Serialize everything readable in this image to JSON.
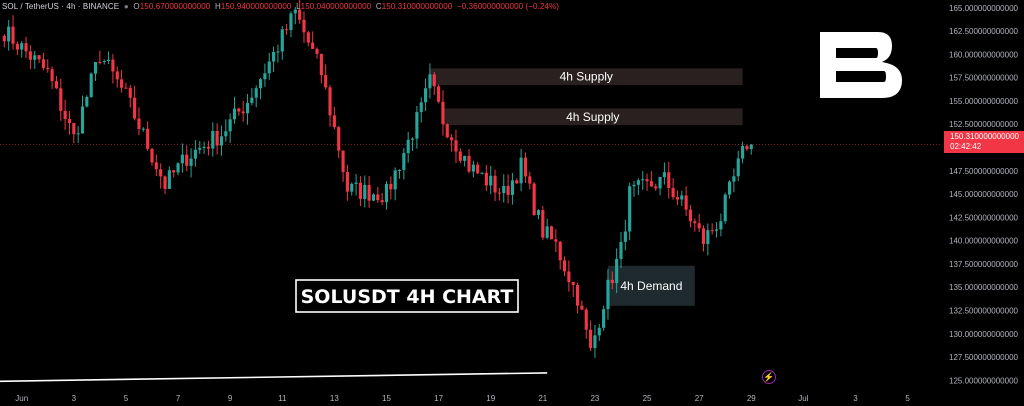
{
  "header": {
    "symbol": "SOL / TetherUS · 4h · BINANCE",
    "o_label": "O",
    "o_value": "150.670000000000",
    "h_label": "H",
    "h_value": "150.940000000000",
    "l_label": "L",
    "l_value": "150.040000000000",
    "c_label": "C",
    "c_value": "150.310000000000",
    "change": "−0.360000000000 (−0.24%)"
  },
  "price_tag": {
    "price": "150.310000000000",
    "countdown": "02:42:42"
  },
  "brand_mark": "B",
  "chart_data": {
    "type": "candlestick",
    "title": "SOLUSDT 4H CHART",
    "symbol": "SOL / TetherUS",
    "timeframe": "4h",
    "exchange": "BINANCE",
    "colors": {
      "up": "#26a69a",
      "down": "#f23645",
      "background": "#000000",
      "zone": "#2a2020",
      "demand_zone": "#1e2a2d",
      "trendline": "#ffffff",
      "price_line": "#f23645"
    },
    "ylim": [
      124.5,
      165.3
    ],
    "y_ticks": [
      "165.000000000000",
      "162.500000000000",
      "160.000000000000",
      "157.500000000000",
      "155.000000000000",
      "152.500000000000",
      "150.000000000000",
      "147.500000000000",
      "145.000000000000",
      "142.500000000000",
      "140.000000000000",
      "137.500000000000",
      "135.000000000000",
      "132.500000000000",
      "130.000000000000",
      "127.500000000000",
      "125.000000000000"
    ],
    "x_ticks": [
      "Jun",
      "3",
      "5",
      "7",
      "9",
      "11",
      "13",
      "15",
      "17",
      "19",
      "21",
      "23",
      "25",
      "27",
      "29",
      "Jul",
      "3",
      "5"
    ],
    "x_tick_dates": [
      "2024-06-01",
      "2024-06-03",
      "2024-06-05",
      "2024-06-07",
      "2024-06-09",
      "2024-06-11",
      "2024-06-13",
      "2024-06-15",
      "2024-06-17",
      "2024-06-19",
      "2024-06-21",
      "2024-06-23",
      "2024-06-25",
      "2024-06-27",
      "2024-06-29",
      "2024-07-01",
      "2024-07-03",
      "2024-07-05"
    ],
    "x_range": [
      "2024-05-31T04:00",
      "2024-07-06T04:00"
    ],
    "last_price": 150.31,
    "zones": [
      {
        "label": "4h Supply",
        "kind": "supply",
        "x_start": "2024-06-16T16:00",
        "x_end": "2024-06-28T16:00",
        "y_low": 156.7,
        "y_high": 158.5
      },
      {
        "label": "4h Supply",
        "kind": "supply",
        "x_start": "2024-06-17T04:00",
        "x_end": "2024-06-28T16:00",
        "y_low": 152.4,
        "y_high": 154.2
      },
      {
        "label": "4h Demand",
        "kind": "demand",
        "x_start": "2024-06-23T12:00",
        "x_end": "2024-06-26T20:00",
        "y_low": 133.0,
        "y_high": 137.3
      }
    ],
    "trendline": {
      "from": [
        "2024-05-31T04:00",
        124.9
      ],
      "to": [
        "2024-06-21T04:00",
        125.8
      ]
    },
    "key_points": [
      {
        "x": "2024-05-31T08:00",
        "y": 162.5
      },
      {
        "x": "2024-06-02T00:00",
        "y": 158.0
      },
      {
        "x": "2024-06-03T00:00",
        "y": 151.0
      },
      {
        "x": "2024-06-04T00:00",
        "y": 160.0
      },
      {
        "x": "2024-06-05T00:00",
        "y": 155.5
      },
      {
        "x": "2024-06-06T12:00",
        "y": 146.0
      },
      {
        "x": "2024-06-07T08:00",
        "y": 149.0
      },
      {
        "x": "2024-06-08T16:00",
        "y": 151.5
      },
      {
        "x": "2024-06-09T16:00",
        "y": 155.0
      },
      {
        "x": "2024-06-10T16:00",
        "y": 160.0
      },
      {
        "x": "2024-06-11T12:00",
        "y": 164.5
      },
      {
        "x": "2024-06-12T12:00",
        "y": 158.0
      },
      {
        "x": "2024-06-13T04:00",
        "y": 150.0
      },
      {
        "x": "2024-06-13T12:00",
        "y": 145.5
      },
      {
        "x": "2024-06-15T00:00",
        "y": 145.0
      },
      {
        "x": "2024-06-16T08:00",
        "y": 154.0
      },
      {
        "x": "2024-06-16T16:00",
        "y": 157.0
      },
      {
        "x": "2024-06-17T04:00",
        "y": 153.0
      },
      {
        "x": "2024-06-18T04:00",
        "y": 148.0
      },
      {
        "x": "2024-06-19T12:00",
        "y": 145.0
      },
      {
        "x": "2024-06-20T04:00",
        "y": 148.0
      },
      {
        "x": "2024-06-21T00:00",
        "y": 141.0
      },
      {
        "x": "2024-06-21T12:00",
        "y": 139.5
      },
      {
        "x": "2024-06-22T08:00",
        "y": 134.0
      },
      {
        "x": "2024-06-22T20:00",
        "y": 128.0
      },
      {
        "x": "2024-06-23T08:00",
        "y": 133.5
      },
      {
        "x": "2024-06-24T00:00",
        "y": 139.0
      },
      {
        "x": "2024-06-24T08:00",
        "y": 145.0
      },
      {
        "x": "2024-06-25T04:00",
        "y": 146.0
      },
      {
        "x": "2024-06-25T16:00",
        "y": 146.5
      },
      {
        "x": "2024-06-26T08:00",
        "y": 144.0
      },
      {
        "x": "2024-06-27T04:00",
        "y": 140.0
      },
      {
        "x": "2024-06-27T20:00",
        "y": 142.5
      },
      {
        "x": "2024-06-28T12:00",
        "y": 148.0
      },
      {
        "x": "2024-06-28T20:00",
        "y": 150.5
      },
      {
        "x": "2024-06-29T00:00",
        "y": 150.31
      }
    ]
  }
}
